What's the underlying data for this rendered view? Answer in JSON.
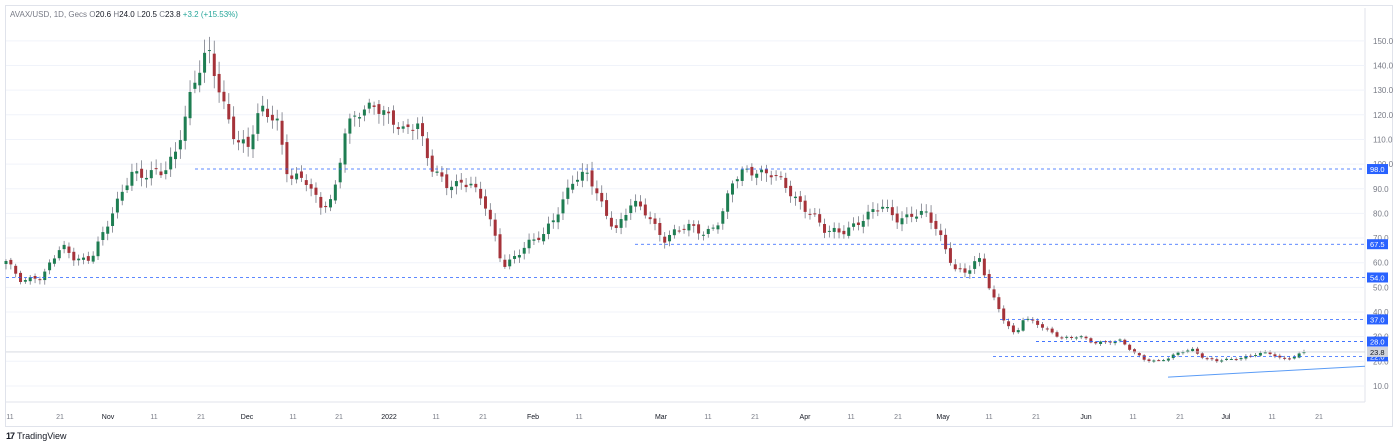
{
  "header": {
    "symbol": "AVAX/USD, 1D, Gecs",
    "open_label": "O",
    "open": "20.6",
    "high_label": "H",
    "high": "24.0",
    "low_label": "L",
    "low": "20.5",
    "close_label": "C",
    "close": "23.8",
    "change": "+3.2 (+15.53%)"
  },
  "brand": {
    "name": "TradingView"
  },
  "colors": {
    "up": "#26a69a",
    "down": "#ef5350",
    "level_line": "#2962ff",
    "trend_line": "#5b9cf6",
    "grid": "#f0f3fa",
    "axis_text": "#787b86"
  },
  "chart_data": {
    "type": "candlestick",
    "title": "AVAX/USD, 1D",
    "xlabel": "",
    "ylabel": "",
    "ylim": [
      0,
      155
    ],
    "y_ticks": [
      "10.0",
      "20.0",
      "30.0",
      "40.0",
      "50.0",
      "60.0",
      "70.0",
      "80.0",
      "90.0",
      "100.0",
      "110.0",
      "120.0",
      "130.0",
      "140.0",
      "150.0"
    ],
    "x_ticks": [
      "11",
      "21",
      "Nov",
      "11",
      "21",
      "Dec",
      "11",
      "21",
      "2022",
      "11",
      "21",
      "Feb",
      "11",
      "Mar",
      "11",
      "21",
      "Apr",
      "11",
      "21",
      "May",
      "11",
      "21",
      "Jun",
      "11",
      "21",
      "Jul",
      "11",
      "21"
    ],
    "levels": [
      {
        "label": "98.0",
        "value": 98.0
      },
      {
        "label": "67.5",
        "value": 67.5
      },
      {
        "label": "54.0",
        "value": 54.0
      },
      {
        "label": "37.0",
        "value": 37.0
      },
      {
        "label": "28.0",
        "value": 28.0
      },
      {
        "label": "22.0",
        "value": 22.0
      }
    ],
    "last_price": {
      "label": "23.8",
      "value": 23.8
    },
    "trend_line": {
      "from": [
        0.855,
        13.5
      ],
      "to": [
        1.0,
        18.0
      ]
    },
    "anchors": [
      [
        0,
        60
      ],
      [
        8,
        52
      ],
      [
        14,
        55
      ],
      [
        18,
        54
      ],
      [
        22,
        60
      ],
      [
        28,
        66
      ],
      [
        34,
        62
      ],
      [
        42,
        62
      ],
      [
        50,
        74
      ],
      [
        62,
        98
      ],
      [
        68,
        95
      ],
      [
        78,
        96
      ],
      [
        84,
        106
      ],
      [
        92,
        130
      ],
      [
        100,
        145
      ],
      [
        106,
        130
      ],
      [
        114,
        110
      ],
      [
        120,
        106
      ],
      [
        126,
        122
      ],
      [
        134,
        120
      ],
      [
        140,
        94
      ],
      [
        148,
        93
      ],
      [
        156,
        84
      ],
      [
        162,
        86
      ],
      [
        168,
        112
      ],
      [
        174,
        120
      ],
      [
        182,
        126
      ],
      [
        190,
        118
      ],
      [
        196,
        112
      ],
      [
        204,
        118
      ],
      [
        210,
        100
      ],
      [
        218,
        90
      ],
      [
        224,
        92
      ],
      [
        230,
        94
      ],
      [
        238,
        82
      ],
      [
        246,
        58
      ],
      [
        252,
        63
      ],
      [
        258,
        68
      ],
      [
        266,
        70
      ],
      [
        274,
        82
      ],
      [
        280,
        94
      ],
      [
        288,
        95
      ],
      [
        296,
        82
      ],
      [
        302,
        74
      ],
      [
        310,
        84
      ],
      [
        318,
        79
      ],
      [
        326,
        70
      ],
      [
        332,
        73
      ],
      [
        340,
        74
      ],
      [
        346,
        72
      ],
      [
        354,
        78
      ],
      [
        360,
        92
      ],
      [
        366,
        97
      ],
      [
        372,
        98
      ],
      [
        380,
        96
      ],
      [
        388,
        88
      ],
      [
        394,
        84
      ],
      [
        400,
        80
      ],
      [
        406,
        72
      ],
      [
        414,
        72
      ],
      [
        420,
        76
      ],
      [
        428,
        80
      ],
      [
        434,
        82
      ],
      [
        442,
        78
      ],
      [
        448,
        80
      ],
      [
        456,
        79
      ],
      [
        462,
        72
      ],
      [
        470,
        58
      ],
      [
        476,
        56
      ],
      [
        482,
        61
      ],
      [
        488,
        48
      ],
      [
        494,
        38
      ],
      [
        500,
        30
      ],
      [
        504,
        37
      ],
      [
        512,
        35
      ],
      [
        518,
        32
      ],
      [
        524,
        29
      ],
      [
        532,
        30
      ],
      [
        538,
        28
      ],
      [
        546,
        28
      ],
      [
        552,
        28
      ],
      [
        558,
        24
      ],
      [
        564,
        21
      ],
      [
        570,
        20
      ],
      [
        576,
        21
      ],
      [
        582,
        24
      ],
      [
        588,
        25
      ],
      [
        594,
        21
      ],
      [
        600,
        20
      ],
      [
        608,
        21
      ],
      [
        614,
        22
      ],
      [
        620,
        23
      ],
      [
        626,
        23
      ],
      [
        632,
        21
      ],
      [
        638,
        22
      ],
      [
        643,
        23.8
      ]
    ]
  }
}
